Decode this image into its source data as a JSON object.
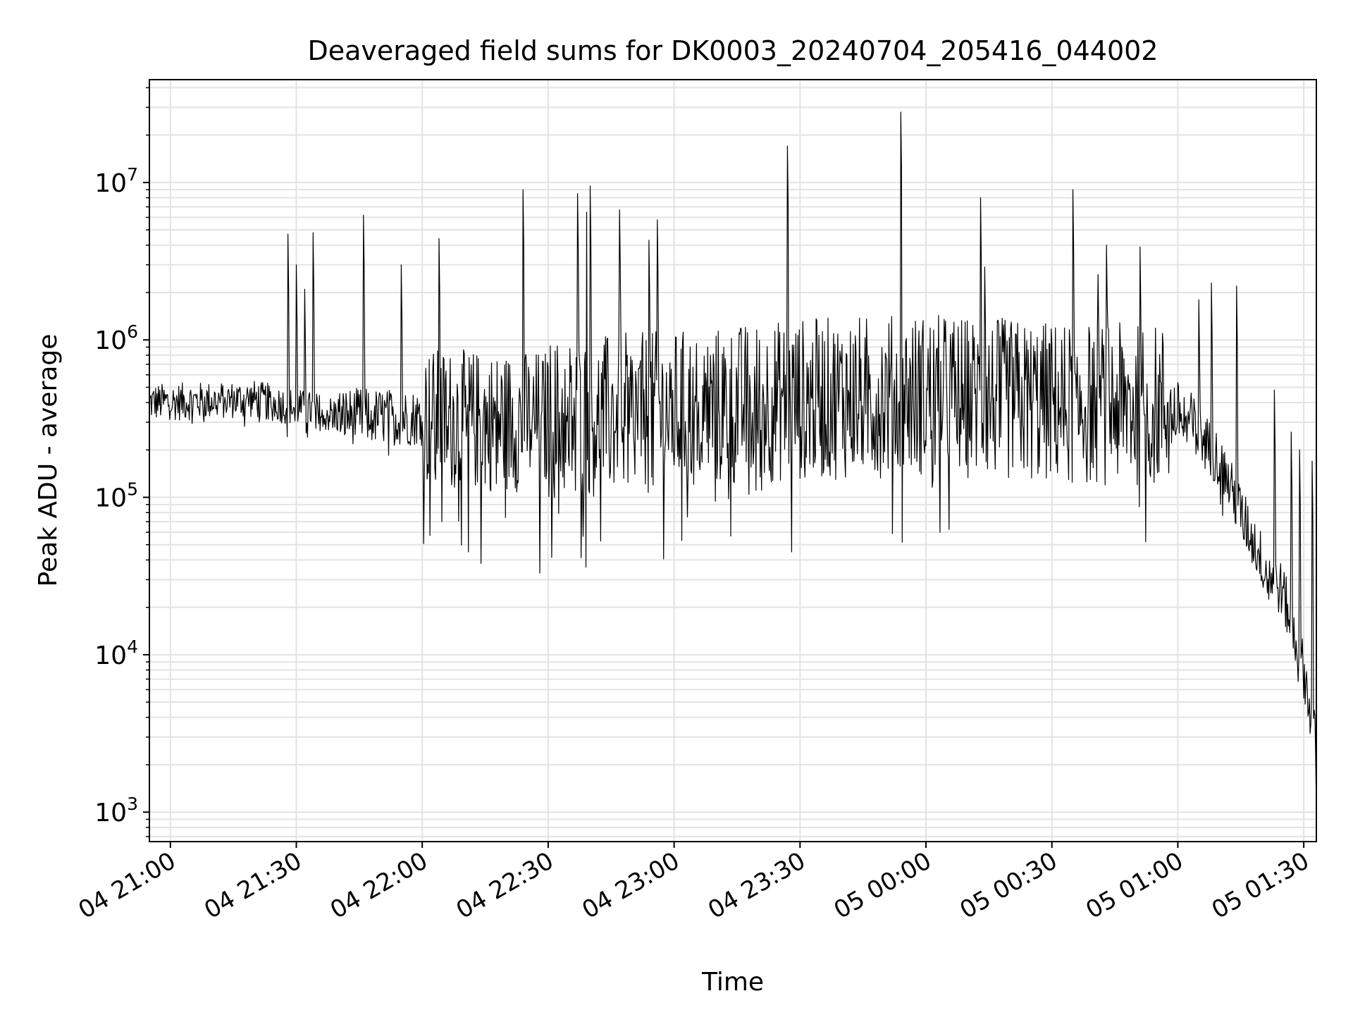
{
  "chart_data": {
    "type": "line",
    "title": "Deaveraged field sums for DK0003_20240704_205416_044002",
    "xlabel": "Time",
    "ylabel": "Peak ADU - average",
    "x_range": [
      "2024-07-04 20:55",
      "2024-07-05 01:33"
    ],
    "y_range": [
      650,
      45000000
    ],
    "y_scale": "log",
    "grid": true,
    "line_color": "#000000",
    "grid_color": "#e3e3e3",
    "x_ticks": [
      {
        "value": "2024-07-04 21:00",
        "label": "04 21:00"
      },
      {
        "value": "2024-07-04 21:30",
        "label": "04 21:30"
      },
      {
        "value": "2024-07-04 22:00",
        "label": "04 22:00"
      },
      {
        "value": "2024-07-04 22:30",
        "label": "04 22:30"
      },
      {
        "value": "2024-07-04 23:00",
        "label": "04 23:00"
      },
      {
        "value": "2024-07-04 23:30",
        "label": "04 23:30"
      },
      {
        "value": "2024-07-05 00:00",
        "label": "05 00:00"
      },
      {
        "value": "2024-07-05 00:30",
        "label": "05 00:30"
      },
      {
        "value": "2024-07-05 01:00",
        "label": "05 01:00"
      },
      {
        "value": "2024-07-05 01:30",
        "label": "05 01:30"
      }
    ],
    "y_ticks": [
      {
        "value": 1000,
        "base": "10",
        "exp": "3"
      },
      {
        "value": 10000,
        "base": "10",
        "exp": "4"
      },
      {
        "value": 100000,
        "base": "10",
        "exp": "5"
      },
      {
        "value": 1000000,
        "base": "10",
        "exp": "6"
      },
      {
        "value": 10000000,
        "base": "10",
        "exp": "7"
      }
    ],
    "series": [
      {
        "baseline": [
          [
            "2024-07-04 20:55",
            400000
          ],
          [
            "2024-07-04 21:20",
            420000
          ],
          [
            "2024-07-04 21:40",
            330000
          ],
          [
            "2024-07-04 22:00",
            320000
          ],
          [
            "2024-07-04 22:20",
            300000
          ],
          [
            "2024-07-04 23:00",
            350000
          ],
          [
            "2024-07-04 23:30",
            420000
          ],
          [
            "2024-07-05 00:00",
            450000
          ],
          [
            "2024-07-05 00:30",
            400000
          ],
          [
            "2024-07-05 00:58",
            380000
          ],
          [
            "2024-07-05 01:03",
            300000
          ],
          [
            "2024-07-05 01:10",
            170000
          ],
          [
            "2024-07-05 01:15",
            80000
          ],
          [
            "2024-07-05 01:20",
            40000
          ],
          [
            "2024-07-05 01:25",
            25000
          ],
          [
            "2024-07-05 01:30",
            8000
          ],
          [
            "2024-07-05 01:33",
            2500
          ]
        ],
        "spikes": [
          [
            "2024-07-04 21:28",
            4700000
          ],
          [
            "2024-07-04 21:30",
            3000000
          ],
          [
            "2024-07-04 21:32",
            2100000
          ],
          [
            "2024-07-04 21:34",
            4800000
          ],
          [
            "2024-07-04 21:46",
            6200000
          ],
          [
            "2024-07-04 21:55",
            3000000
          ],
          [
            "2024-07-04 22:04",
            4400000
          ],
          [
            "2024-07-04 22:24",
            9000000
          ],
          [
            "2024-07-04 22:37",
            8500000
          ],
          [
            "2024-07-04 22:39",
            14500000
          ],
          [
            "2024-07-04 22:40",
            9500000
          ],
          [
            "2024-07-04 22:47",
            6700000
          ],
          [
            "2024-07-04 22:54",
            4300000
          ],
          [
            "2024-07-04 22:56",
            5800000
          ],
          [
            "2024-07-04 23:27",
            17000000
          ],
          [
            "2024-07-04 23:54",
            28000000
          ],
          [
            "2024-07-05 00:13",
            8000000
          ],
          [
            "2024-07-05 00:14",
            2900000
          ],
          [
            "2024-07-05 00:35",
            9000000
          ],
          [
            "2024-07-05 00:41",
            2600000
          ],
          [
            "2024-07-05 00:43",
            4000000
          ],
          [
            "2024-07-05 00:51",
            3900000
          ],
          [
            "2024-07-05 01:05",
            1800000
          ],
          [
            "2024-07-05 01:08",
            2300000
          ],
          [
            "2024-07-05 01:14",
            2200000
          ],
          [
            "2024-07-05 01:23",
            480000
          ],
          [
            "2024-07-05 01:27",
            260000
          ],
          [
            "2024-07-05 01:29",
            200000
          ],
          [
            "2024-07-05 01:32",
            170000
          ]
        ],
        "dips": [
          [
            "2024-07-04 22:11",
            45000
          ],
          [
            "2024-07-04 22:14",
            38000
          ],
          [
            "2024-07-04 22:28",
            33000
          ],
          [
            "2024-07-04 22:39",
            36000
          ],
          [
            "2024-07-04 23:28",
            45000
          ],
          [
            "2024-07-05 01:33",
            1050
          ]
        ]
      }
    ]
  }
}
